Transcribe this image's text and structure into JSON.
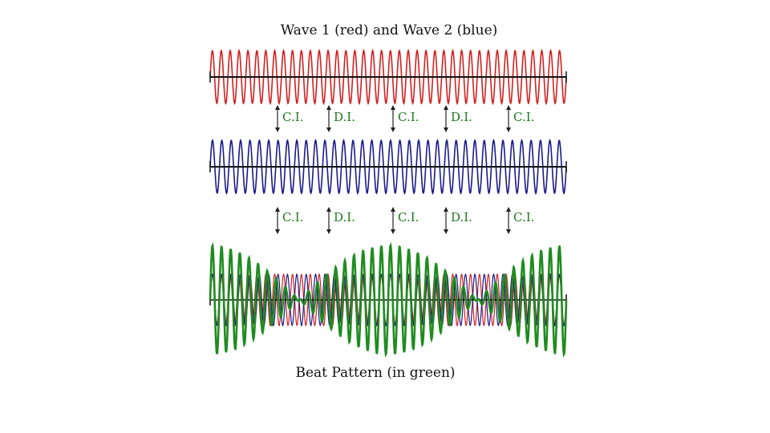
{
  "title": "Wave 1 (red) and Wave 2 (blue)",
  "caption": "Beat Pattern (in green)",
  "colors": {
    "wave1": "#d42020",
    "wave2": "#1a1a8c",
    "beat": "#1e8c1e",
    "beat_low": "#8a5a00",
    "axis": "#111111",
    "label": "#1e7a1e"
  },
  "interference_rows": [
    {
      "markers": [
        {
          "label": "C.I."
        },
        {
          "label": "D.I."
        },
        {
          "label": "C.I."
        },
        {
          "label": "D.I."
        },
        {
          "label": "C.I."
        }
      ]
    },
    {
      "markers": [
        {
          "label": "C.I."
        },
        {
          "label": "D.I."
        },
        {
          "label": "C.I."
        },
        {
          "label": "D.I."
        },
        {
          "label": "C.I."
        }
      ]
    }
  ]
}
